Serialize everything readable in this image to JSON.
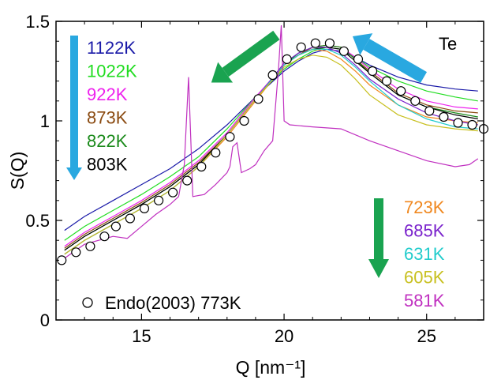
{
  "chart_data": {
    "type": "line",
    "ylabel": "S(Q)",
    "xlabel": "Q [nm⁻¹]",
    "xlim": [
      12,
      27
    ],
    "ylim": [
      0,
      1.5
    ],
    "xticks": [
      15,
      20,
      25
    ],
    "xtick_labels": [
      "15",
      "20",
      "25"
    ],
    "yticks": [
      0,
      0.5,
      1,
      1.5
    ],
    "ytick_labels": [
      "0",
      "0.5",
      "1",
      "1.5"
    ],
    "annotation": "Te",
    "grid": false,
    "legend_position": "top-left and lower-right, colored text",
    "legend_left": [
      "1122K",
      "1022K",
      "922K",
      "873K",
      "822K",
      "803K"
    ],
    "legend_right": [
      "723K",
      "685K",
      "631K",
      "605K",
      "581K"
    ],
    "scatter_legend": "Endo(2003) 773K",
    "arrows": [
      {
        "direction": "down",
        "color": "#29a8e0"
      },
      {
        "direction": "down-left",
        "color": "#1aa350"
      },
      {
        "direction": "up-left",
        "color": "#29a8e0"
      },
      {
        "direction": "down",
        "color": "#1aa350"
      }
    ],
    "series": [
      {
        "name": "1122K",
        "color": "#1a1aa8",
        "x": [
          12.3,
          13,
          14,
          15,
          16,
          17,
          18,
          19,
          20,
          20.5,
          21,
          21.5,
          22,
          22.5,
          23,
          24,
          25,
          26,
          26.8
        ],
        "y": [
          0.45,
          0.52,
          0.6,
          0.68,
          0.76,
          0.86,
          0.98,
          1.12,
          1.25,
          1.3,
          1.34,
          1.36,
          1.35,
          1.32,
          1.28,
          1.22,
          1.18,
          1.16,
          1.15
        ]
      },
      {
        "name": "1022K",
        "color": "#22dd22",
        "x": [
          12.3,
          13,
          14,
          15,
          16,
          17,
          18,
          19,
          20,
          20.5,
          21,
          21.5,
          22,
          22.5,
          23,
          24,
          25,
          26,
          26.8
        ],
        "y": [
          0.4,
          0.47,
          0.55,
          0.63,
          0.72,
          0.82,
          0.96,
          1.12,
          1.26,
          1.31,
          1.35,
          1.37,
          1.36,
          1.32,
          1.27,
          1.2,
          1.15,
          1.12,
          1.1
        ]
      },
      {
        "name": "922K",
        "color": "#ee22ee",
        "x": [
          12.3,
          13,
          14,
          15,
          16,
          17,
          18,
          19,
          20,
          20.5,
          21,
          21.5,
          22,
          22.5,
          23,
          24,
          25,
          26,
          26.8
        ],
        "y": [
          0.37,
          0.44,
          0.52,
          0.6,
          0.69,
          0.8,
          0.94,
          1.12,
          1.28,
          1.33,
          1.37,
          1.38,
          1.37,
          1.32,
          1.26,
          1.16,
          1.1,
          1.07,
          1.06
        ]
      },
      {
        "name": "873K",
        "color": "#8a4a10",
        "x": [
          12.3,
          13,
          14,
          15,
          16,
          17,
          18,
          19,
          20,
          20.5,
          21,
          21.5,
          22,
          22.5,
          23,
          24,
          25,
          26,
          26.8
        ],
        "y": [
          0.36,
          0.43,
          0.51,
          0.59,
          0.68,
          0.79,
          0.93,
          1.11,
          1.28,
          1.33,
          1.37,
          1.38,
          1.37,
          1.31,
          1.25,
          1.14,
          1.08,
          1.05,
          1.04
        ]
      },
      {
        "name": "822K",
        "color": "#1a8a1a",
        "x": [
          12.3,
          13,
          14,
          15,
          16,
          17,
          18,
          19,
          20,
          20.5,
          21,
          21.5,
          22,
          22.5,
          23,
          24,
          25,
          26,
          26.8
        ],
        "y": [
          0.35,
          0.42,
          0.5,
          0.58,
          0.67,
          0.78,
          0.93,
          1.11,
          1.28,
          1.34,
          1.37,
          1.38,
          1.37,
          1.31,
          1.24,
          1.13,
          1.07,
          1.04,
          1.02
        ]
      },
      {
        "name": "803K",
        "color": "#000000",
        "x": [
          12.3,
          13,
          14,
          15,
          16,
          17,
          18,
          19,
          20,
          20.5,
          21,
          21.5,
          22,
          22.5,
          23,
          24,
          25,
          26,
          26.8
        ],
        "y": [
          0.35,
          0.42,
          0.5,
          0.58,
          0.67,
          0.78,
          0.93,
          1.11,
          1.28,
          1.33,
          1.36,
          1.37,
          1.36,
          1.3,
          1.24,
          1.13,
          1.07,
          1.03,
          1.01
        ]
      },
      {
        "name": "723K",
        "color": "#f08820",
        "x": [
          12.3,
          13,
          14,
          15,
          16,
          17,
          18,
          19,
          20,
          20.5,
          21,
          21.5,
          22,
          22.5,
          23,
          24,
          25,
          26,
          26.8
        ],
        "y": [
          0.33,
          0.4,
          0.48,
          0.56,
          0.65,
          0.77,
          0.92,
          1.1,
          1.28,
          1.33,
          1.36,
          1.35,
          1.31,
          1.25,
          1.18,
          1.08,
          1.02,
          1.0,
          0.99
        ]
      },
      {
        "name": "685K",
        "color": "#7a22cc",
        "x": [
          12.3,
          13,
          14,
          15,
          16,
          17,
          18,
          19,
          20,
          20.5,
          21,
          21.5,
          22,
          22.5,
          23,
          24,
          25,
          26,
          26.8
        ],
        "y": [
          0.33,
          0.4,
          0.48,
          0.56,
          0.65,
          0.77,
          0.93,
          1.11,
          1.29,
          1.34,
          1.37,
          1.37,
          1.34,
          1.28,
          1.21,
          1.11,
          1.04,
          1.0,
          0.98
        ]
      },
      {
        "name": "631K",
        "color": "#22cccc",
        "x": [
          12.3,
          13,
          14,
          15,
          16,
          17,
          18,
          19,
          20,
          20.5,
          21,
          21.5,
          22,
          22.5,
          23,
          24,
          25,
          26,
          26.8
        ],
        "y": [
          0.33,
          0.4,
          0.48,
          0.56,
          0.65,
          0.77,
          0.93,
          1.11,
          1.28,
          1.33,
          1.36,
          1.36,
          1.33,
          1.27,
          1.2,
          1.08,
          1.01,
          0.97,
          0.96
        ]
      },
      {
        "name": "605K",
        "color": "#c8c020",
        "x": [
          12.3,
          13,
          14,
          15,
          16,
          17,
          18,
          19,
          20,
          20.5,
          21,
          21.5,
          22,
          22.5,
          23,
          24,
          25,
          26,
          26.8
        ],
        "y": [
          0.33,
          0.4,
          0.48,
          0.56,
          0.65,
          0.77,
          0.93,
          1.11,
          1.27,
          1.31,
          1.33,
          1.32,
          1.28,
          1.21,
          1.13,
          1.03,
          0.98,
          0.96,
          0.95
        ]
      },
      {
        "name": "581K",
        "color": "#c030c0",
        "x": [
          12.3,
          13,
          14,
          14.5,
          15,
          15.5,
          16,
          16.3,
          16.5,
          16.65,
          16.8,
          17.2,
          17.6,
          18,
          18.1,
          18.2,
          18.35,
          18.5,
          18.8,
          19,
          19.3,
          19.6,
          19.8,
          19.9,
          20,
          20.2,
          21,
          22,
          23,
          24,
          25,
          26,
          26.5,
          26.8
        ],
        "y": [
          0.31,
          0.38,
          0.42,
          0.41,
          0.47,
          0.53,
          0.58,
          0.62,
          0.78,
          1.22,
          0.62,
          0.63,
          0.68,
          0.74,
          0.77,
          0.87,
          0.89,
          0.74,
          0.76,
          0.78,
          0.85,
          0.9,
          1.25,
          1.48,
          1.0,
          0.98,
          0.97,
          0.96,
          0.9,
          0.85,
          0.8,
          0.77,
          0.78,
          0.81
        ]
      }
    ],
    "scatter": {
      "name": "Endo(2003) 773K",
      "x": [
        12.2,
        12.7,
        13.2,
        13.7,
        14.1,
        14.6,
        15.1,
        15.6,
        16.1,
        16.6,
        17.1,
        17.6,
        18.1,
        18.6,
        19.1,
        19.6,
        20.1,
        20.6,
        21.1,
        21.6,
        22.1,
        22.6,
        23.1,
        23.6,
        24.1,
        24.6,
        25.1,
        25.6,
        26.1,
        26.6,
        27.0
      ],
      "y": [
        0.3,
        0.34,
        0.37,
        0.42,
        0.47,
        0.51,
        0.56,
        0.6,
        0.64,
        0.7,
        0.77,
        0.84,
        0.92,
        1.0,
        1.11,
        1.23,
        1.31,
        1.37,
        1.39,
        1.39,
        1.35,
        1.31,
        1.25,
        1.2,
        1.15,
        1.1,
        1.05,
        1.02,
        0.99,
        0.98,
        0.96
      ]
    }
  }
}
